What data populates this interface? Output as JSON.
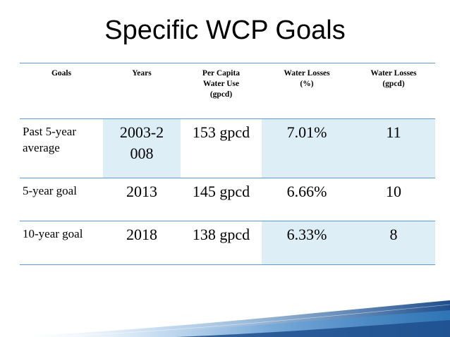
{
  "slide": {
    "title": "Specific WCP Goals"
  },
  "table": {
    "headers": [
      "Goals",
      "Years",
      "Per Capita\nWater Use\n(gpcd)",
      "Water Losses\n(%)",
      "Water Losses\n(gpcd)"
    ],
    "rows": [
      {
        "goal": "Past 5-year\naverage",
        "years": "2003-2\n008",
        "per_capita": "153 gpcd",
        "loss_pct": "7.01%",
        "loss_gpcd": "11"
      },
      {
        "goal": "5-year  goal",
        "years": "2013",
        "per_capita": "145 gpcd",
        "loss_pct": "6.66%",
        "loss_gpcd": "10"
      },
      {
        "goal": "10-year goal",
        "years": "2018",
        "per_capita": "138 gpcd",
        "loss_pct": "6.33%",
        "loss_gpcd": "8"
      }
    ]
  },
  "colors": {
    "border": "#5b9bd5",
    "shaded_cell": "#deeef7",
    "swoosh_dark": "#1f4e8c",
    "swoosh_light": "#6fa8dc"
  }
}
